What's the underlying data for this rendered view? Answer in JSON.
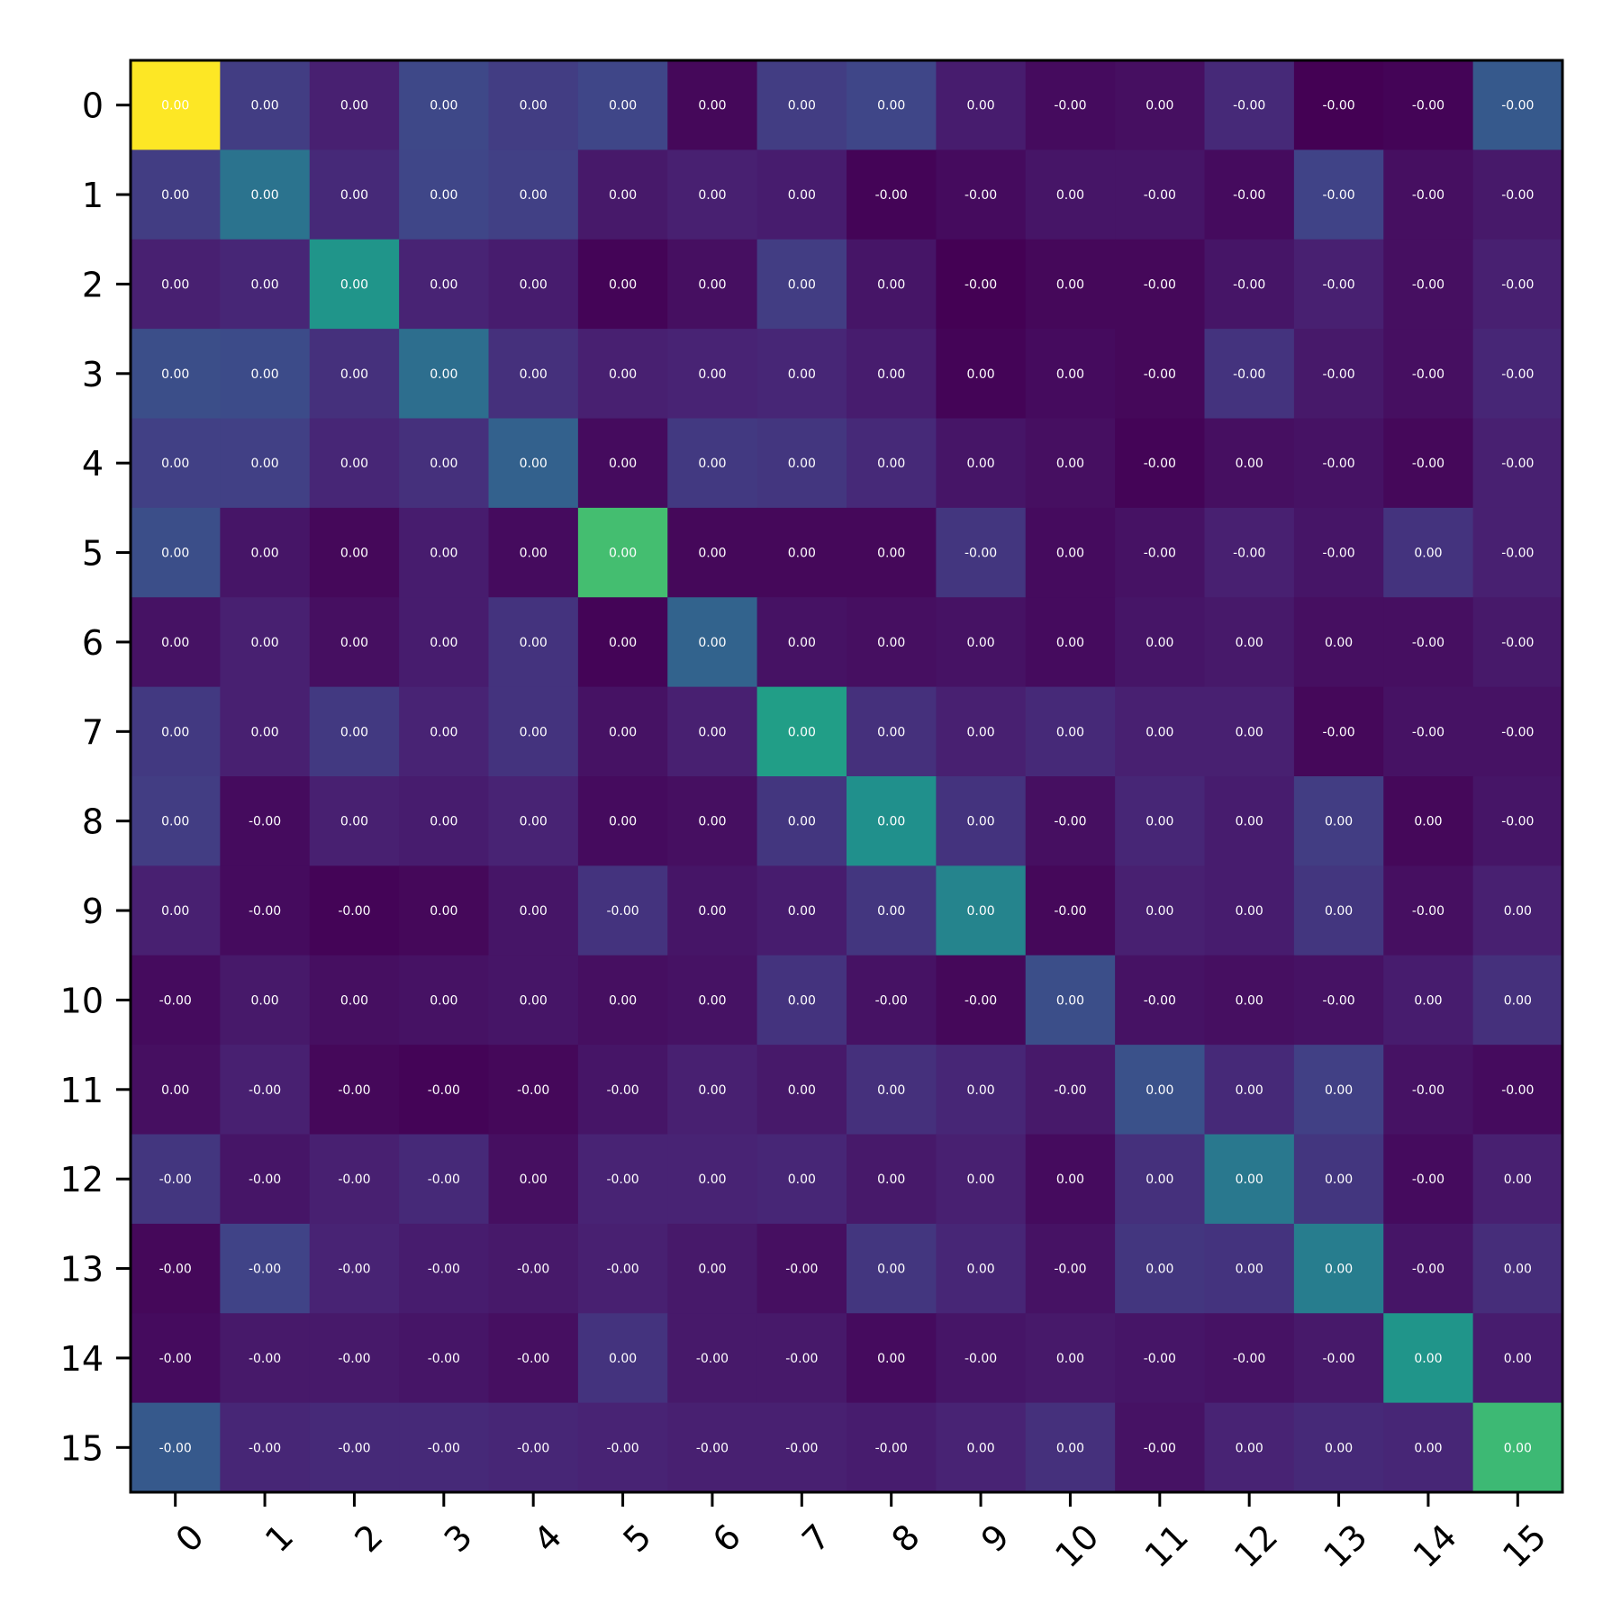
{
  "chart_data": {
    "type": "heatmap",
    "title": "",
    "xlabel": "",
    "ylabel": "",
    "x_tick_labels": [
      "0",
      "1",
      "2",
      "3",
      "4",
      "5",
      "6",
      "7",
      "8",
      "9",
      "10",
      "11",
      "12",
      "13",
      "14",
      "15"
    ],
    "y_tick_labels": [
      "0",
      "1",
      "2",
      "3",
      "4",
      "5",
      "6",
      "7",
      "8",
      "9",
      "10",
      "11",
      "12",
      "13",
      "14",
      "15"
    ],
    "colormap": "viridis",
    "color_range": [
      0,
      1
    ],
    "color_intensity": [
      [
        1.0,
        0.18,
        0.09,
        0.22,
        0.18,
        0.21,
        0.02,
        0.18,
        0.21,
        0.08,
        0.03,
        0.04,
        0.12,
        0.0,
        0.01,
        0.28
      ],
      [
        0.18,
        0.38,
        0.12,
        0.21,
        0.19,
        0.07,
        0.09,
        0.08,
        0.01,
        0.03,
        0.06,
        0.06,
        0.03,
        0.2,
        0.04,
        0.07
      ],
      [
        0.09,
        0.11,
        0.52,
        0.1,
        0.08,
        0.01,
        0.04,
        0.18,
        0.06,
        0.0,
        0.02,
        0.02,
        0.06,
        0.09,
        0.04,
        0.09
      ],
      [
        0.24,
        0.23,
        0.14,
        0.36,
        0.14,
        0.09,
        0.1,
        0.11,
        0.08,
        0.01,
        0.03,
        0.02,
        0.15,
        0.07,
        0.04,
        0.11
      ],
      [
        0.19,
        0.19,
        0.11,
        0.14,
        0.31,
        0.03,
        0.17,
        0.16,
        0.12,
        0.06,
        0.04,
        0.01,
        0.04,
        0.05,
        0.02,
        0.09
      ],
      [
        0.24,
        0.06,
        0.02,
        0.08,
        0.03,
        0.7,
        0.02,
        0.02,
        0.02,
        0.16,
        0.03,
        0.05,
        0.09,
        0.06,
        0.15,
        0.09
      ],
      [
        0.05,
        0.09,
        0.04,
        0.08,
        0.15,
        0.01,
        0.32,
        0.05,
        0.04,
        0.05,
        0.03,
        0.06,
        0.07,
        0.04,
        0.04,
        0.07
      ],
      [
        0.17,
        0.09,
        0.17,
        0.1,
        0.15,
        0.05,
        0.09,
        0.56,
        0.14,
        0.09,
        0.12,
        0.09,
        0.09,
        0.02,
        0.05,
        0.05
      ],
      [
        0.18,
        0.03,
        0.09,
        0.08,
        0.1,
        0.03,
        0.04,
        0.16,
        0.5,
        0.15,
        0.04,
        0.11,
        0.08,
        0.18,
        0.02,
        0.06
      ],
      [
        0.09,
        0.03,
        0.01,
        0.02,
        0.06,
        0.15,
        0.06,
        0.08,
        0.16,
        0.45,
        0.02,
        0.09,
        0.08,
        0.16,
        0.04,
        0.09
      ],
      [
        0.03,
        0.07,
        0.04,
        0.05,
        0.06,
        0.04,
        0.05,
        0.15,
        0.05,
        0.02,
        0.24,
        0.05,
        0.04,
        0.05,
        0.08,
        0.14
      ],
      [
        0.04,
        0.09,
        0.02,
        0.01,
        0.02,
        0.06,
        0.09,
        0.07,
        0.14,
        0.11,
        0.07,
        0.25,
        0.12,
        0.19,
        0.05,
        0.03
      ],
      [
        0.16,
        0.06,
        0.09,
        0.12,
        0.04,
        0.1,
        0.1,
        0.11,
        0.07,
        0.09,
        0.03,
        0.14,
        0.4,
        0.16,
        0.03,
        0.09
      ],
      [
        0.02,
        0.2,
        0.1,
        0.08,
        0.07,
        0.09,
        0.07,
        0.04,
        0.16,
        0.11,
        0.05,
        0.16,
        0.15,
        0.42,
        0.06,
        0.13
      ],
      [
        0.03,
        0.07,
        0.07,
        0.06,
        0.04,
        0.15,
        0.07,
        0.07,
        0.03,
        0.06,
        0.07,
        0.06,
        0.05,
        0.07,
        0.52,
        0.08
      ],
      [
        0.28,
        0.11,
        0.12,
        0.12,
        0.11,
        0.1,
        0.09,
        0.09,
        0.08,
        0.1,
        0.14,
        0.05,
        0.1,
        0.12,
        0.11,
        0.68
      ]
    ],
    "cell_labels": [
      [
        "0.00",
        "0.00",
        "0.00",
        "0.00",
        "0.00",
        "0.00",
        "0.00",
        "0.00",
        "0.00",
        "0.00",
        "-0.00",
        "0.00",
        "-0.00",
        "-0.00",
        "-0.00",
        "-0.00"
      ],
      [
        "0.00",
        "0.00",
        "0.00",
        "0.00",
        "0.00",
        "0.00",
        "0.00",
        "0.00",
        "-0.00",
        "-0.00",
        "0.00",
        "-0.00",
        "-0.00",
        "-0.00",
        "-0.00",
        "-0.00"
      ],
      [
        "0.00",
        "0.00",
        "0.00",
        "0.00",
        "0.00",
        "0.00",
        "0.00",
        "0.00",
        "0.00",
        "-0.00",
        "0.00",
        "-0.00",
        "-0.00",
        "-0.00",
        "-0.00",
        "-0.00"
      ],
      [
        "0.00",
        "0.00",
        "0.00",
        "0.00",
        "0.00",
        "0.00",
        "0.00",
        "0.00",
        "0.00",
        "0.00",
        "0.00",
        "-0.00",
        "-0.00",
        "-0.00",
        "-0.00",
        "-0.00"
      ],
      [
        "0.00",
        "0.00",
        "0.00",
        "0.00",
        "0.00",
        "0.00",
        "0.00",
        "0.00",
        "0.00",
        "0.00",
        "0.00",
        "-0.00",
        "0.00",
        "-0.00",
        "-0.00",
        "-0.00"
      ],
      [
        "0.00",
        "0.00",
        "0.00",
        "0.00",
        "0.00",
        "0.00",
        "0.00",
        "0.00",
        "0.00",
        "-0.00",
        "0.00",
        "-0.00",
        "-0.00",
        "-0.00",
        "0.00",
        "-0.00"
      ],
      [
        "0.00",
        "0.00",
        "0.00",
        "0.00",
        "0.00",
        "0.00",
        "0.00",
        "0.00",
        "0.00",
        "0.00",
        "0.00",
        "0.00",
        "0.00",
        "0.00",
        "-0.00",
        "-0.00"
      ],
      [
        "0.00",
        "0.00",
        "0.00",
        "0.00",
        "0.00",
        "0.00",
        "0.00",
        "0.00",
        "0.00",
        "0.00",
        "0.00",
        "0.00",
        "0.00",
        "-0.00",
        "-0.00",
        "-0.00"
      ],
      [
        "0.00",
        "-0.00",
        "0.00",
        "0.00",
        "0.00",
        "0.00",
        "0.00",
        "0.00",
        "0.00",
        "0.00",
        "-0.00",
        "0.00",
        "0.00",
        "0.00",
        "0.00",
        "-0.00"
      ],
      [
        "0.00",
        "-0.00",
        "-0.00",
        "0.00",
        "0.00",
        "-0.00",
        "0.00",
        "0.00",
        "0.00",
        "0.00",
        "-0.00",
        "0.00",
        "0.00",
        "0.00",
        "-0.00",
        "0.00"
      ],
      [
        "-0.00",
        "0.00",
        "0.00",
        "0.00",
        "0.00",
        "0.00",
        "0.00",
        "0.00",
        "-0.00",
        "-0.00",
        "0.00",
        "-0.00",
        "0.00",
        "-0.00",
        "0.00",
        "0.00"
      ],
      [
        "0.00",
        "-0.00",
        "-0.00",
        "-0.00",
        "-0.00",
        "-0.00",
        "0.00",
        "0.00",
        "0.00",
        "0.00",
        "-0.00",
        "0.00",
        "0.00",
        "0.00",
        "-0.00",
        "-0.00"
      ],
      [
        "-0.00",
        "-0.00",
        "-0.00",
        "-0.00",
        "0.00",
        "-0.00",
        "0.00",
        "0.00",
        "0.00",
        "0.00",
        "0.00",
        "0.00",
        "0.00",
        "0.00",
        "-0.00",
        "0.00"
      ],
      [
        "-0.00",
        "-0.00",
        "-0.00",
        "-0.00",
        "-0.00",
        "-0.00",
        "0.00",
        "-0.00",
        "0.00",
        "0.00",
        "-0.00",
        "0.00",
        "0.00",
        "0.00",
        "-0.00",
        "0.00"
      ],
      [
        "-0.00",
        "-0.00",
        "-0.00",
        "-0.00",
        "-0.00",
        "0.00",
        "-0.00",
        "-0.00",
        "0.00",
        "-0.00",
        "0.00",
        "-0.00",
        "-0.00",
        "-0.00",
        "0.00",
        "0.00"
      ],
      [
        "-0.00",
        "-0.00",
        "-0.00",
        "-0.00",
        "-0.00",
        "-0.00",
        "-0.00",
        "-0.00",
        "-0.00",
        "0.00",
        "0.00",
        "-0.00",
        "0.00",
        "0.00",
        "0.00",
        "0.00"
      ]
    ],
    "grid": false,
    "legend": false
  }
}
